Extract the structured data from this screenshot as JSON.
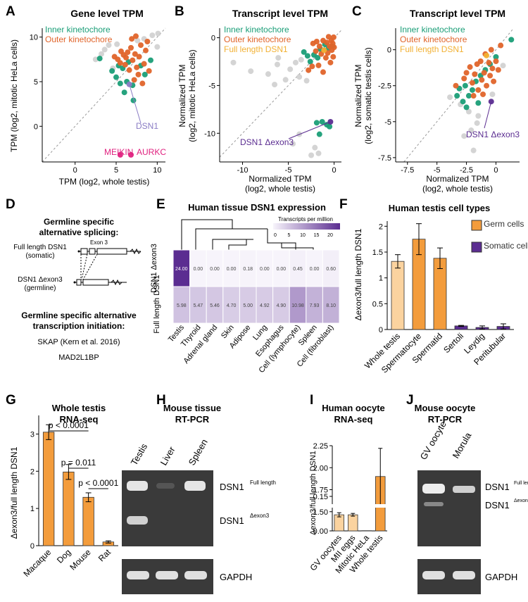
{
  "colors": {
    "green": "#1a9e77",
    "orange": "#e0642a",
    "yellow": "#f2b134",
    "purple": "#5b2d91",
    "grey": "#c9c9c9",
    "pink": "#e0217f",
    "bar_orange": "#f39c3c",
    "bar_light": "#fbd39f",
    "bar_purple": "#5b2d91",
    "dsn1": "#8a7cc4"
  },
  "panel_letters": [
    "A",
    "B",
    "C",
    "D",
    "E",
    "F",
    "G",
    "H",
    "I",
    "J"
  ],
  "panelA": {
    "title": "Gene level TPM",
    "xlabel": "TPM (log2, whole testis)",
    "ylabel": "TPM (log2, mitotic HeLa cells)",
    "legend": [
      "Inner kinetochore",
      "Outer kinetochore"
    ],
    "annotations": [
      "DSN1",
      "MEIKIN",
      "AURKC"
    ]
  },
  "panelB": {
    "title": "Transcript level TPM",
    "xlabel": [
      "Normalized TPM",
      "(log2, whole testis)"
    ],
    "ylabel": [
      "Normalized TPM",
      "(log2, mitotic HeLa cells)"
    ],
    "legend": [
      "Inner kinetochore",
      "Outer kinetochore",
      "Full length DSN1"
    ],
    "annotations": [
      "DSN1 Δexon3"
    ]
  },
  "panelC": {
    "title": "Transcript level TPM",
    "xlabel": [
      "Normalized TPM",
      "(log2, whole testis)"
    ],
    "ylabel": [
      "Normalized TPM",
      "(log2, somatic testis cells)"
    ],
    "legend": [
      "Inner kinetochore",
      "Outer kinetochore",
      "Full length DSN1"
    ],
    "annotations": [
      "DSN1 Δexon3"
    ]
  },
  "panelD": {
    "heading1": [
      "Germline specific",
      "alternative splicing:"
    ],
    "iso1": [
      "Full length DSN1",
      "(somatic)"
    ],
    "iso2": [
      "DSN1 Δexon3",
      "(germline)"
    ],
    "exon_label": "Exon 3",
    "heading2": [
      "Germline specific alternative",
      "transcription initiation:"
    ],
    "genes": [
      "SKAP (Kern et al. 2016)",
      "MAD2L1BP"
    ]
  },
  "panelE": {
    "title": "Human tissue DSN1 expression",
    "legend_title": "Transcripts per million",
    "legend_ticks": [
      "0",
      "5",
      "10",
      "15",
      "20"
    ],
    "rows": [
      "DSN1 Δexon3",
      "Full length DSN1"
    ],
    "tissues": [
      "Testis",
      "Thyroid",
      "Adrenal gland",
      "Skin",
      "Adipose",
      "Lung",
      "Esophagus",
      "Cell (lymphocyte)",
      "Spleen",
      "Cell (fibroblast)"
    ],
    "values": [
      [
        "24.00",
        "0.00",
        "0.00",
        "0.00",
        "0.18",
        "0.00",
        "0.00",
        "0.45",
        "0.00",
        "0.60"
      ],
      [
        "5.98",
        "5.47",
        "5.46",
        "4.70",
        "5.00",
        "4.92",
        "4.90",
        "10.98",
        "7.93",
        "8.10"
      ]
    ]
  },
  "panelF": {
    "title": "Human testis cell types",
    "ylabel": "Δexon3/full length DSN1",
    "legend": [
      "Germ cells",
      "Somatic cells"
    ]
  },
  "panelG": {
    "title": [
      "Whole testis",
      "RNA-seq"
    ],
    "ylabel": "Δexon3/full length DSN1",
    "pvals": [
      "p < 0.0001",
      "p = 0.011",
      "p < 0.0001"
    ]
  },
  "panelH": {
    "title": [
      "Mouse tissue",
      "RT-PCR"
    ],
    "lanes": [
      "Testis",
      "Liver",
      "Spleen"
    ],
    "band_full": "DSN1",
    "band_full_sup": "Full length",
    "band_d3": "DSN1",
    "band_d3_sup": "Δexon3",
    "gapdh": "GAPDH"
  },
  "panelI": {
    "title": [
      "Human oocyte",
      "RNA-seq"
    ],
    "ylabel": "Δexon3/full length DSN1"
  },
  "panelJ": {
    "title": [
      "Mouse oocyte",
      "RT-PCR"
    ],
    "lanes": [
      "GV oocyte",
      "Morula"
    ],
    "band_full": "DSN1",
    "band_full_sup": "Full length",
    "band_d3": "DSN1",
    "band_d3_sup": "Δexon3",
    "gapdh": "GAPDH"
  },
  "chart_data": [
    {
      "panel": "A",
      "type": "scatter",
      "title": "Gene level TPM",
      "xlim": [
        -4,
        11
      ],
      "ylim": [
        -4,
        11
      ],
      "xticks": [
        0,
        5,
        10
      ],
      "yticks": [
        0,
        5,
        10
      ],
      "series": [
        {
          "name": "Inner kinetochore",
          "points": [
            [
              3,
              7.6
            ],
            [
              4.5,
              6.2
            ],
            [
              5,
              5.5
            ],
            [
              5.3,
              6.8
            ],
            [
              5.5,
              4.8
            ],
            [
              5.8,
              6.5
            ],
            [
              6,
              3.8
            ],
            [
              6.3,
              5
            ],
            [
              6.5,
              7.2
            ],
            [
              7,
              4.6
            ],
            [
              7.1,
              2.9
            ],
            [
              8,
              6.8
            ],
            [
              8.5,
              5.8
            ],
            [
              9.2,
              7.4
            ]
          ]
        },
        {
          "name": "Outer kinetochore",
          "points": [
            [
              4.8,
              7.8
            ],
            [
              5.2,
              7.5
            ],
            [
              5.5,
              7.1
            ],
            [
              5.6,
              8.4
            ],
            [
              5.9,
              8
            ],
            [
              6.1,
              6.9
            ],
            [
              6.2,
              7.7
            ],
            [
              6.4,
              8.3
            ],
            [
              6.6,
              6.3
            ],
            [
              6.8,
              8.8
            ],
            [
              7,
              7.4
            ],
            [
              7.2,
              5.2
            ],
            [
              7.3,
              8.1
            ],
            [
              7.5,
              6.6
            ],
            [
              7.7,
              5.8
            ],
            [
              7.8,
              7.8
            ],
            [
              8,
              9.1
            ],
            [
              8.2,
              4.8
            ],
            [
              8.4,
              7
            ],
            [
              8.6,
              8.5
            ],
            [
              8.8,
              9.5
            ],
            [
              9,
              6.2
            ],
            [
              6.9,
              9.8
            ],
            [
              7.4,
              10.1
            ]
          ]
        },
        {
          "name": "Other",
          "points": [
            [
              2.5,
              7.5
            ],
            [
              3.6,
              8.6
            ],
            [
              4.1,
              9.1
            ],
            [
              4.6,
              6.5
            ],
            [
              5.1,
              9.2
            ],
            [
              7.6,
              9.6
            ],
            [
              8.4,
              9.8
            ],
            [
              9.4,
              10.2
            ],
            [
              10,
              8.9
            ],
            [
              10.1,
              10.4
            ],
            [
              3.2,
              8.1
            ]
          ]
        },
        {
          "name": "DSN1",
          "points": [
            [
              6.6,
              4.7
            ]
          ]
        },
        {
          "name": "MEIKIN",
          "points": [
            [
              5.5,
              -3.2
            ]
          ]
        },
        {
          "name": "AURKC",
          "points": [
            [
              6.8,
              -3.2
            ]
          ]
        }
      ]
    },
    {
      "panel": "B",
      "type": "scatter",
      "title": "Transcript level TPM",
      "xlim": [
        -12.5,
        0.8
      ],
      "ylim": [
        -13,
        1
      ],
      "xticks": [
        -10,
        -5,
        0
      ],
      "yticks": [
        -10,
        -5,
        0
      ],
      "series": [
        {
          "name": "Inner kinetochore",
          "points": [
            [
              -3.3,
              -1.5
            ],
            [
              -2.9,
              -1.9
            ],
            [
              -2.6,
              -2.5
            ],
            [
              -2.2,
              -1.8
            ],
            [
              -1.8,
              -2.1
            ],
            [
              -1.5,
              -1.2
            ],
            [
              -1,
              -0.7
            ],
            [
              -0.6,
              -1.1
            ],
            [
              -0.2,
              -0.9
            ],
            [
              -1.3,
              -8.8
            ],
            [
              -1.9,
              -8.9
            ],
            [
              -0.8,
              -9.1
            ],
            [
              -0.5,
              -9.3
            ],
            [
              -1.6,
              -10.1
            ]
          ]
        },
        {
          "name": "Outer kinetochore",
          "points": [
            [
              -2.3,
              -0.6
            ],
            [
              -2,
              -1.4
            ],
            [
              -1.9,
              -0.4
            ],
            [
              -1.7,
              -2.9
            ],
            [
              -1.6,
              -0.9
            ],
            [
              -1.4,
              -1.7
            ],
            [
              -1.2,
              -0.3
            ],
            [
              -1.1,
              -1.3
            ],
            [
              -0.9,
              -2.1
            ],
            [
              -0.8,
              -0.5
            ],
            [
              -0.7,
              -1.6
            ],
            [
              -0.6,
              0.1
            ],
            [
              -0.5,
              -0.9
            ],
            [
              -0.4,
              -2.6
            ],
            [
              -0.3,
              -0.3
            ],
            [
              -0.25,
              -1.3
            ],
            [
              -0.15,
              -0.6
            ],
            [
              -0.1,
              -2
            ],
            [
              0,
              -1
            ],
            [
              -2.8,
              -3.4
            ],
            [
              -2.4,
              -3
            ],
            [
              -0.05,
              0.05
            ],
            [
              -1.2,
              -3.6
            ]
          ]
        },
        {
          "name": "Full length DSN1",
          "points": [
            [
              -1.1,
              -1.3
            ]
          ]
        },
        {
          "name": "Other",
          "points": [
            [
              -11,
              -2.6
            ],
            [
              -9.1,
              -3.5
            ],
            [
              -7.2,
              -3.8
            ],
            [
              -6.2,
              -2.8
            ],
            [
              -6.1,
              -2.1
            ],
            [
              -4.2,
              -2.6
            ],
            [
              -4.8,
              -3.3
            ],
            [
              -3.8,
              -4.1
            ],
            [
              -5.3,
              -4.4
            ],
            [
              -6.5,
              -4.9
            ],
            [
              -3.6,
              -2.3
            ],
            [
              -3,
              -4.5
            ],
            [
              -2.5,
              -12.3
            ],
            [
              -2.1,
              -11.5
            ],
            [
              -1.7,
              -12.1
            ],
            [
              -4.5,
              -11.1
            ],
            [
              -3.8,
              -10.1
            ]
          ]
        },
        {
          "name": "DSN1 Δexon3",
          "points": [
            [
              -0.4,
              -8.8
            ]
          ]
        }
      ]
    },
    {
      "panel": "C",
      "type": "scatter",
      "title": "Transcript level TPM",
      "xlim": [
        -8.5,
        2
      ],
      "ylim": [
        -7.8,
        1.5
      ],
      "xticks": [
        -7.5,
        -5,
        -2.5,
        0
      ],
      "yticks": [
        -7.5,
        -5,
        -2.5,
        0
      ],
      "series": [
        {
          "name": "Inner kinetochore",
          "points": [
            [
              -3.3,
              -3.2
            ],
            [
              -3.1,
              -2.7
            ],
            [
              -2.8,
              -3.6
            ],
            [
              -2.6,
              -2.5
            ],
            [
              -2.3,
              -3.2
            ],
            [
              -2,
              -2.8
            ],
            [
              -1.7,
              -2.2
            ],
            [
              -1.3,
              -1.8
            ],
            [
              -0.9,
              -1.4
            ],
            [
              -0.5,
              -1
            ],
            [
              0,
              -0.5
            ],
            [
              1.3,
              0.7
            ],
            [
              -1.5,
              -3.7
            ],
            [
              -2.5,
              -4
            ]
          ]
        },
        {
          "name": "Outer kinetochore",
          "points": [
            [
              -2.5,
              -1.6
            ],
            [
              -2.2,
              -1.2
            ],
            [
              -2,
              -2.3
            ],
            [
              -1.8,
              -1.7
            ],
            [
              -1.6,
              -1
            ],
            [
              -1.5,
              -2.8
            ],
            [
              -1.3,
              -0.8
            ],
            [
              -1.2,
              -2.1
            ],
            [
              -1,
              -1.6
            ],
            [
              -0.9,
              -0.3
            ],
            [
              -0.8,
              -2.5
            ],
            [
              -0.6,
              -0.9
            ],
            [
              -0.5,
              -1.8
            ],
            [
              -0.4,
              0
            ],
            [
              -0.3,
              -1.3
            ],
            [
              -0.2,
              -2.2
            ],
            [
              0,
              -0.8
            ],
            [
              0.2,
              -1.4
            ],
            [
              0.4,
              0.3
            ],
            [
              -1.9,
              -3.2
            ],
            [
              -3.4,
              -2.5
            ],
            [
              -1.1,
              -3.1
            ],
            [
              -2.7,
              -2
            ]
          ]
        },
        {
          "name": "Full length DSN1",
          "points": [
            [
              -0.8,
              -0.4
            ]
          ]
        },
        {
          "name": "Other",
          "points": [
            [
              -3,
              -3.8
            ],
            [
              -2.3,
              -4.3
            ],
            [
              -1.5,
              -4.6
            ],
            [
              -2.7,
              -6
            ],
            [
              -1.9,
              -7
            ],
            [
              -1.6,
              -5.1
            ],
            [
              -2.1,
              -5.6
            ],
            [
              -0.3,
              -3.1
            ],
            [
              0.6,
              -1.1
            ],
            [
              -3.9,
              -3.3
            ]
          ]
        },
        {
          "name": "DSN1 Δexon3",
          "points": [
            [
              -0.4,
              -3.6
            ]
          ]
        }
      ]
    },
    {
      "panel": "F",
      "type": "bar",
      "title": "Human testis cell types",
      "categories": [
        "Whole testis",
        "Spermatocyte",
        "Spermatid",
        "Sertoli",
        "Leydig",
        "Peritubular"
      ],
      "values": [
        1.32,
        1.75,
        1.38,
        0.07,
        0.04,
        0.06
      ],
      "errors": [
        0.13,
        0.3,
        0.2,
        0.01,
        0.03,
        0.05
      ],
      "groups": [
        "Germ",
        "Germ",
        "Germ",
        "Somatic",
        "Somatic",
        "Somatic"
      ],
      "ylim": [
        0,
        2.1
      ],
      "yticks": [
        0,
        0.5,
        1,
        1.5,
        2
      ],
      "ylabel": "Δexon3/full length DSN1",
      "legend": [
        "Germ cells",
        "Somatic cells"
      ]
    },
    {
      "panel": "G",
      "type": "bar",
      "title": "Whole testis RNA-seq",
      "categories": [
        "Macaque",
        "Dog",
        "Mouse",
        "Rat"
      ],
      "values": [
        3.05,
        1.98,
        1.3,
        0.1
      ],
      "errors": [
        0.2,
        0.2,
        0.12,
        0.03
      ],
      "ylim": [
        0,
        3.5
      ],
      "yticks": [
        0,
        1,
        2,
        3
      ],
      "ylabel": "Δexon3/full length DSN1",
      "annotations": [
        "p < 0.0001",
        "p = 0.011",
        "p < 0.0001"
      ]
    },
    {
      "panel": "I",
      "type": "bar",
      "title": "Human oocyte RNA-seq",
      "categories": [
        "GV oocytes",
        "MII eggs",
        "Mitotic HeLa",
        "Whole testis"
      ],
      "values": [
        0.07,
        0.07,
        0.001,
        1.9
      ],
      "errors": [
        0.009,
        0.006,
        0.0,
        0.32
      ],
      "axis_break": true,
      "yticks_low": [
        "0.00",
        "0.15"
      ],
      "yticks_high": [
        "1.50",
        "1.75",
        "2.00",
        "2.25"
      ],
      "ylabel": "Δexon3/full length DSN1"
    }
  ]
}
